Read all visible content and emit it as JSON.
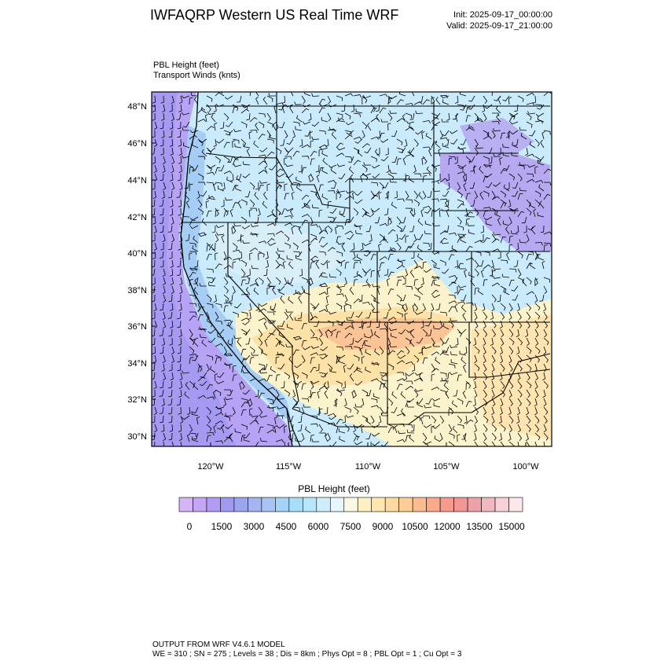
{
  "header": {
    "title": "IWFAQRP Western US Real Time WRF",
    "init": "Init: 2025-09-17_00:00:00",
    "valid": "Valid: 2025-09-17_21:00:00"
  },
  "fields": {
    "line1": "PBL Height   (feet)",
    "line2": "Transport Winds   (knts)"
  },
  "map": {
    "lat_ticks": [
      "48°N",
      "46°N",
      "44°N",
      "42°N",
      "40°N",
      "38°N",
      "36°N",
      "34°N",
      "32°N",
      "30°N"
    ],
    "lon_ticks": [
      "120°W",
      "115°W",
      "110°W",
      "105°W",
      "100°W"
    ]
  },
  "colorbar": {
    "title": "PBL Height  (feet)",
    "labels": [
      "0",
      "1500",
      "3000",
      "4500",
      "6000",
      "7500",
      "9000",
      "10500",
      "12000",
      "13500",
      "15000"
    ],
    "colors": [
      "#d7b4f5",
      "#c4a6f5",
      "#b29cf5",
      "#a29af0",
      "#9ca5f0",
      "#a4b5f2",
      "#a8c4f4",
      "#a5d2f7",
      "#a8def9",
      "#b9e6fa",
      "#cfeefb",
      "#e5f6fc",
      "#fbf9e4",
      "#fdf1c4",
      "#fde7ac",
      "#fddba0",
      "#fccd96",
      "#fbbd90",
      "#f9aa8c",
      "#f69a8e",
      "#f29696",
      "#eda1a8",
      "#f0b8c0",
      "#f6d2d6",
      "#fce8ea"
    ]
  },
  "footer": {
    "line1": "OUTPUT FROM WRF V4.6.1 MODEL",
    "line2": "WE = 310 ; SN = 275 ; Levels = 38 ; Dis = 8km ; Phys Opt = 8 ; PBL Opt = 1 ; Cu Opt = 3"
  }
}
